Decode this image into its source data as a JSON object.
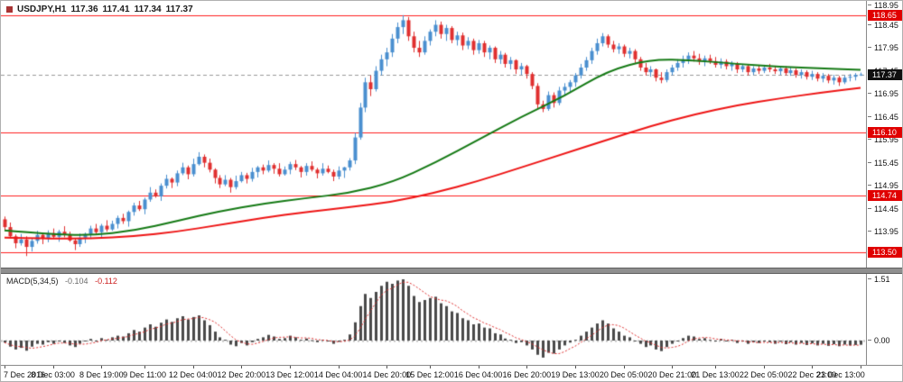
{
  "header": {
    "symbol_period": "USDJPY,H1",
    "open": "117.36",
    "high": "117.41",
    "low": "117.34",
    "close": "117.37"
  },
  "indicator": {
    "name": "MACD(5,34,5)",
    "value_main": "-0.104",
    "value_signal": "-0.112"
  },
  "colors": {
    "bull": "#4a8fd0",
    "bear": "#e03030",
    "ma_fast": "#157a15",
    "ma_slow": "#ee1515",
    "level_line": "#ff2020",
    "level_badge_bg": "#e00000",
    "current_badge_bg": "#101010",
    "bid_line": "#9a9a9a",
    "histogram": "#4a4a4a",
    "signal": "#e03030",
    "zero_line": "#bbbbbb"
  },
  "chart_data": {
    "type": "candlestick",
    "title": "USDJPY,H1",
    "symbol": "USDJPY",
    "timeframe": "H1",
    "legend_position": "top-left",
    "grid": false,
    "price_axis": {
      "max": 118.97,
      "min": 113.17,
      "ticks": [
        118.95,
        118.45,
        117.95,
        117.45,
        116.95,
        116.45,
        115.95,
        115.45,
        114.95,
        114.45,
        113.95,
        113.45
      ]
    },
    "levels": [
      118.65,
      116.1,
      114.74,
      113.5
    ],
    "current_price": 117.37,
    "time_axis": [
      {
        "label": "7 Dec 2016",
        "i": 0
      },
      {
        "label": "8 Dec 03:00",
        "i": 9
      },
      {
        "label": "8 Dec 19:00",
        "i": 18
      },
      {
        "label": "9 Dec 11:00",
        "i": 26
      },
      {
        "label": "12 Dec 04:00",
        "i": 35
      },
      {
        "label": "12 Dec 20:00",
        "i": 44
      },
      {
        "label": "13 Dec 12:00",
        "i": 53
      },
      {
        "label": "14 Dec 04:00",
        "i": 62
      },
      {
        "label": "14 Dec 20:00",
        "i": 71
      },
      {
        "label": "15 Dec 12:00",
        "i": 79
      },
      {
        "label": "16 Dec 04:00",
        "i": 88
      },
      {
        "label": "16 Dec 20:00",
        "i": 97
      },
      {
        "label": "19 Dec 13:00",
        "i": 106
      },
      {
        "label": "20 Dec 05:00",
        "i": 115
      },
      {
        "label": "20 Dec 21:00",
        "i": 124
      },
      {
        "label": "21 Dec 13:00",
        "i": 132
      },
      {
        "label": "22 Dec 05:00",
        "i": 141
      },
      {
        "label": "22 Dec 21:00",
        "i": 150
      },
      {
        "label": "23 Dec 13:00",
        "i": 159
      }
    ],
    "candles": [
      [
        114.22,
        114.28,
        113.97,
        114.05
      ],
      [
        114.05,
        114.15,
        113.81,
        113.85
      ],
      [
        113.85,
        113.89,
        113.59,
        113.7
      ],
      [
        113.7,
        113.9,
        113.65,
        113.78
      ],
      [
        113.78,
        113.85,
        113.42,
        113.62
      ],
      [
        113.62,
        113.8,
        113.52,
        113.75
      ],
      [
        113.75,
        113.97,
        113.69,
        113.88
      ],
      [
        113.88,
        113.91,
        113.68,
        113.8
      ],
      [
        113.8,
        113.98,
        113.72,
        113.92
      ],
      [
        113.92,
        114.02,
        113.8,
        113.84
      ],
      [
        113.84,
        113.99,
        113.73,
        113.95
      ],
      [
        113.95,
        114.07,
        113.83,
        113.88
      ],
      [
        113.88,
        113.95,
        113.73,
        113.76
      ],
      [
        113.76,
        113.81,
        113.55,
        113.68
      ],
      [
        113.68,
        113.91,
        113.62,
        113.82
      ],
      [
        113.82,
        113.93,
        113.7,
        113.9
      ],
      [
        113.9,
        114.08,
        113.82,
        114.02
      ],
      [
        114.02,
        114.12,
        113.9,
        113.94
      ],
      [
        113.94,
        114.12,
        113.83,
        114.08
      ],
      [
        114.08,
        114.2,
        113.95,
        114.0
      ],
      [
        114.0,
        114.19,
        113.97,
        114.12
      ],
      [
        114.12,
        114.3,
        114.02,
        114.25
      ],
      [
        114.25,
        114.34,
        114.12,
        114.18
      ],
      [
        114.18,
        114.41,
        114.06,
        114.38
      ],
      [
        114.38,
        114.58,
        114.3,
        114.52
      ],
      [
        114.52,
        114.62,
        114.4,
        114.44
      ],
      [
        114.44,
        114.69,
        114.33,
        114.65
      ],
      [
        114.65,
        114.92,
        114.6,
        114.8
      ],
      [
        114.8,
        114.87,
        114.69,
        114.72
      ],
      [
        114.72,
        115.0,
        114.62,
        114.95
      ],
      [
        114.95,
        115.19,
        114.89,
        115.1
      ],
      [
        115.1,
        115.13,
        114.9,
        115.02
      ],
      [
        115.02,
        115.28,
        114.94,
        115.22
      ],
      [
        115.22,
        115.45,
        115.18,
        115.35
      ],
      [
        115.35,
        115.39,
        115.09,
        115.2
      ],
      [
        115.2,
        115.54,
        115.15,
        115.42
      ],
      [
        115.42,
        115.68,
        115.39,
        115.58
      ],
      [
        115.58,
        115.63,
        115.35,
        115.45
      ],
      [
        115.45,
        115.54,
        115.24,
        115.3
      ],
      [
        115.3,
        115.33,
        115.0,
        115.12
      ],
      [
        115.12,
        115.18,
        114.9,
        114.98
      ],
      [
        114.98,
        115.18,
        114.94,
        115.08
      ],
      [
        115.08,
        115.12,
        114.8,
        114.92
      ],
      [
        114.92,
        115.17,
        114.87,
        115.05
      ],
      [
        115.05,
        115.25,
        115.02,
        115.18
      ],
      [
        115.18,
        115.23,
        115.0,
        115.1
      ],
      [
        115.1,
        115.34,
        115.04,
        115.25
      ],
      [
        115.25,
        115.38,
        115.13,
        115.35
      ],
      [
        115.35,
        115.41,
        115.2,
        115.28
      ],
      [
        115.28,
        115.5,
        115.24,
        115.4
      ],
      [
        115.4,
        115.44,
        115.21,
        115.32
      ],
      [
        115.32,
        115.44,
        115.15,
        115.2
      ],
      [
        115.2,
        115.37,
        115.17,
        115.3
      ],
      [
        115.3,
        115.47,
        115.2,
        115.42
      ],
      [
        115.42,
        115.51,
        115.29,
        115.35
      ],
      [
        115.35,
        115.38,
        115.13,
        115.25
      ],
      [
        115.25,
        115.44,
        115.17,
        115.38
      ],
      [
        115.38,
        115.48,
        115.26,
        115.3
      ],
      [
        115.3,
        115.34,
        115.11,
        115.22
      ],
      [
        115.22,
        115.44,
        115.17,
        115.32
      ],
      [
        115.32,
        115.39,
        115.22,
        115.25
      ],
      [
        115.25,
        115.3,
        115.05,
        115.15
      ],
      [
        115.15,
        115.37,
        115.09,
        115.28
      ],
      [
        115.28,
        115.36,
        115.12,
        115.35
      ],
      [
        115.35,
        115.55,
        115.28,
        115.5
      ],
      [
        115.5,
        116.1,
        115.42,
        116.0
      ],
      [
        116.0,
        116.75,
        115.95,
        116.65
      ],
      [
        116.65,
        117.3,
        116.55,
        117.2
      ],
      [
        117.2,
        117.35,
        116.9,
        117.05
      ],
      [
        117.05,
        117.55,
        117.0,
        117.45
      ],
      [
        117.45,
        117.8,
        117.35,
        117.7
      ],
      [
        117.7,
        117.95,
        117.55,
        117.85
      ],
      [
        117.85,
        118.25,
        117.75,
        118.15
      ],
      [
        118.15,
        118.5,
        118.05,
        118.4
      ],
      [
        118.4,
        118.66,
        118.25,
        118.55
      ],
      [
        118.55,
        118.62,
        118.1,
        118.2
      ],
      [
        118.2,
        118.3,
        117.85,
        117.95
      ],
      [
        117.95,
        118.1,
        117.75,
        117.85
      ],
      [
        117.85,
        118.2,
        117.8,
        118.1
      ],
      [
        118.1,
        118.35,
        118.0,
        118.3
      ],
      [
        118.3,
        118.55,
        118.2,
        118.45
      ],
      [
        118.45,
        118.52,
        118.15,
        118.25
      ],
      [
        118.25,
        118.45,
        118.1,
        118.38
      ],
      [
        118.38,
        118.42,
        118.05,
        118.12
      ],
      [
        118.12,
        118.3,
        118.0,
        118.22
      ],
      [
        118.22,
        118.28,
        117.9,
        118.0
      ],
      [
        118.0,
        118.18,
        117.92,
        118.1
      ],
      [
        118.1,
        118.15,
        117.8,
        117.9
      ],
      [
        117.9,
        118.12,
        117.82,
        118.05
      ],
      [
        118.05,
        118.1,
        117.75,
        117.85
      ],
      [
        117.85,
        118.0,
        117.7,
        117.95
      ],
      [
        117.95,
        117.98,
        117.62,
        117.7
      ],
      [
        117.7,
        117.88,
        117.6,
        117.8
      ],
      [
        117.8,
        117.84,
        117.52,
        117.6
      ],
      [
        117.6,
        117.75,
        117.48,
        117.68
      ],
      [
        117.68,
        117.7,
        117.38,
        117.48
      ],
      [
        117.48,
        117.62,
        117.36,
        117.55
      ],
      [
        117.55,
        117.58,
        117.28,
        117.38
      ],
      [
        117.38,
        117.42,
        117.05,
        117.12
      ],
      [
        117.12,
        117.18,
        116.62,
        116.72
      ],
      [
        116.72,
        116.8,
        116.55,
        116.62
      ],
      [
        116.62,
        117.0,
        116.58,
        116.92
      ],
      [
        116.92,
        116.98,
        116.65,
        116.75
      ],
      [
        116.75,
        117.1,
        116.7,
        117.02
      ],
      [
        117.02,
        117.18,
        116.92,
        117.1
      ],
      [
        117.1,
        117.25,
        116.98,
        117.2
      ],
      [
        117.2,
        117.4,
        117.1,
        117.35
      ],
      [
        117.35,
        117.6,
        117.28,
        117.52
      ],
      [
        117.52,
        117.75,
        117.45,
        117.68
      ],
      [
        117.68,
        117.95,
        117.6,
        117.88
      ],
      [
        117.88,
        118.15,
        117.8,
        118.05
      ],
      [
        118.05,
        118.27,
        117.98,
        118.2
      ],
      [
        118.2,
        118.24,
        117.95,
        118.02
      ],
      [
        118.02,
        118.1,
        117.85,
        117.92
      ],
      [
        117.92,
        118.05,
        117.82,
        117.98
      ],
      [
        117.98,
        118.02,
        117.75,
        117.82
      ],
      [
        117.82,
        117.95,
        117.72,
        117.88
      ],
      [
        117.88,
        117.92,
        117.62,
        117.7
      ],
      [
        117.7,
        117.75,
        117.45,
        117.52
      ],
      [
        117.52,
        117.62,
        117.35,
        117.42
      ],
      [
        117.42,
        117.55,
        117.32,
        117.48
      ],
      [
        117.48,
        117.5,
        117.22,
        117.3
      ],
      [
        117.3,
        117.42,
        117.18,
        117.25
      ],
      [
        117.25,
        117.48,
        117.2,
        117.42
      ],
      [
        117.42,
        117.58,
        117.35,
        117.52
      ],
      [
        117.52,
        117.7,
        117.45,
        117.62
      ],
      [
        117.62,
        117.78,
        117.52,
        117.7
      ],
      [
        117.7,
        117.85,
        117.6,
        117.78
      ],
      [
        117.78,
        117.88,
        117.65,
        117.72
      ],
      [
        117.72,
        117.82,
        117.58,
        117.65
      ],
      [
        117.65,
        117.78,
        117.55,
        117.72
      ],
      [
        117.72,
        117.8,
        117.6,
        117.66
      ],
      [
        117.66,
        117.75,
        117.52,
        117.58
      ],
      [
        117.58,
        117.72,
        117.5,
        117.65
      ],
      [
        117.65,
        117.7,
        117.48,
        117.55
      ],
      [
        117.55,
        117.66,
        117.45,
        117.6
      ],
      [
        117.6,
        117.64,
        117.4,
        117.48
      ],
      [
        117.48,
        117.6,
        117.42,
        117.55
      ],
      [
        117.55,
        117.58,
        117.35,
        117.42
      ],
      [
        117.42,
        117.55,
        117.36,
        117.5
      ],
      [
        117.5,
        117.56,
        117.38,
        117.45
      ],
      [
        117.45,
        117.58,
        117.4,
        117.52
      ],
      [
        117.52,
        117.6,
        117.42,
        117.48
      ],
      [
        117.48,
        117.56,
        117.38,
        117.44
      ],
      [
        117.44,
        117.54,
        117.36,
        117.5
      ],
      [
        117.5,
        117.55,
        117.35,
        117.4
      ],
      [
        117.4,
        117.52,
        117.34,
        117.46
      ],
      [
        117.46,
        117.5,
        117.3,
        117.36
      ],
      [
        117.36,
        117.48,
        117.28,
        117.42
      ],
      [
        117.42,
        117.46,
        117.26,
        117.32
      ],
      [
        117.32,
        117.45,
        117.25,
        117.38
      ],
      [
        117.38,
        117.42,
        117.22,
        117.28
      ],
      [
        117.28,
        117.4,
        117.2,
        117.34
      ],
      [
        117.34,
        117.38,
        117.18,
        117.24
      ],
      [
        117.24,
        117.36,
        117.15,
        117.3
      ],
      [
        117.3,
        117.34,
        117.12,
        117.2
      ],
      [
        117.2,
        117.35,
        117.16,
        117.3
      ],
      [
        117.3,
        117.38,
        117.22,
        117.32
      ],
      [
        117.32,
        117.4,
        117.24,
        117.36
      ],
      [
        117.36,
        117.41,
        117.34,
        117.37
      ]
    ],
    "ma_fast_points": [
      [
        0,
        113.98
      ],
      [
        8,
        113.9
      ],
      [
        16,
        113.87
      ],
      [
        24,
        113.97
      ],
      [
        32,
        114.18
      ],
      [
        40,
        114.4
      ],
      [
        48,
        114.56
      ],
      [
        56,
        114.68
      ],
      [
        64,
        114.79
      ],
      [
        72,
        115.02
      ],
      [
        80,
        115.45
      ],
      [
        88,
        115.95
      ],
      [
        96,
        116.45
      ],
      [
        104,
        116.9
      ],
      [
        112,
        117.45
      ],
      [
        120,
        117.7
      ],
      [
        128,
        117.68
      ],
      [
        136,
        117.6
      ],
      [
        144,
        117.54
      ],
      [
        152,
        117.5
      ],
      [
        159,
        117.47
      ]
    ],
    "ma_slow_points": [
      [
        0,
        113.82
      ],
      [
        8,
        113.8
      ],
      [
        16,
        113.8
      ],
      [
        24,
        113.85
      ],
      [
        32,
        113.95
      ],
      [
        40,
        114.1
      ],
      [
        48,
        114.25
      ],
      [
        56,
        114.38
      ],
      [
        64,
        114.48
      ],
      [
        72,
        114.6
      ],
      [
        80,
        114.8
      ],
      [
        88,
        115.05
      ],
      [
        96,
        115.35
      ],
      [
        104,
        115.65
      ],
      [
        112,
        115.95
      ],
      [
        120,
        116.25
      ],
      [
        128,
        116.5
      ],
      [
        136,
        116.7
      ],
      [
        144,
        116.85
      ],
      [
        152,
        116.98
      ],
      [
        159,
        117.08
      ]
    ],
    "macd": {
      "params": "5,34,5",
      "ticks": [
        1.51,
        0.0
      ],
      "max": 1.64,
      "min": -0.6,
      "values": [
        -0.05,
        -0.15,
        -0.22,
        -0.18,
        -0.25,
        -0.15,
        -0.08,
        -0.1,
        -0.04,
        -0.08,
        -0.02,
        -0.06,
        -0.12,
        -0.16,
        -0.08,
        -0.02,
        0.04,
        0.0,
        0.06,
        0.02,
        0.08,
        0.12,
        0.1,
        0.18,
        0.26,
        0.22,
        0.32,
        0.4,
        0.34,
        0.44,
        0.52,
        0.46,
        0.55,
        0.6,
        0.52,
        0.58,
        0.62,
        0.5,
        0.38,
        0.22,
        0.08,
        0.02,
        -0.1,
        -0.14,
        -0.06,
        -0.12,
        -0.04,
        0.04,
        0.08,
        0.14,
        0.1,
        0.04,
        0.06,
        0.12,
        0.08,
        0.02,
        0.05,
        0.01,
        -0.04,
        0.02,
        -0.02,
        -0.08,
        -0.03,
        0.02,
        0.15,
        0.45,
        0.85,
        1.15,
        1.05,
        1.2,
        1.35,
        1.45,
        1.4,
        1.48,
        1.51,
        1.35,
        1.1,
        0.95,
        1.0,
        1.05,
        1.08,
        0.92,
        0.85,
        0.72,
        0.68,
        0.55,
        0.5,
        0.4,
        0.42,
        0.32,
        0.3,
        0.18,
        0.15,
        0.05,
        0.02,
        -0.06,
        -0.04,
        -0.12,
        -0.22,
        -0.35,
        -0.42,
        -0.3,
        -0.32,
        -0.22,
        -0.12,
        -0.05,
        0.02,
        0.12,
        0.22,
        0.32,
        0.42,
        0.5,
        0.42,
        0.3,
        0.22,
        0.12,
        0.08,
        0.0,
        -0.08,
        -0.16,
        -0.12,
        -0.22,
        -0.26,
        -0.16,
        -0.08,
        0.0,
        0.06,
        0.12,
        0.1,
        0.04,
        0.06,
        0.02,
        -0.02,
        0.04,
        -0.02,
        0.02,
        -0.06,
        -0.02,
        -0.08,
        -0.04,
        -0.06,
        -0.02,
        -0.04,
        -0.08,
        -0.03,
        -0.09,
        -0.04,
        -0.1,
        -0.06,
        -0.11,
        -0.07,
        -0.12,
        -0.08,
        -0.13,
        -0.09,
        -0.14,
        -0.1,
        -0.12,
        -0.11,
        -0.104
      ]
    }
  }
}
